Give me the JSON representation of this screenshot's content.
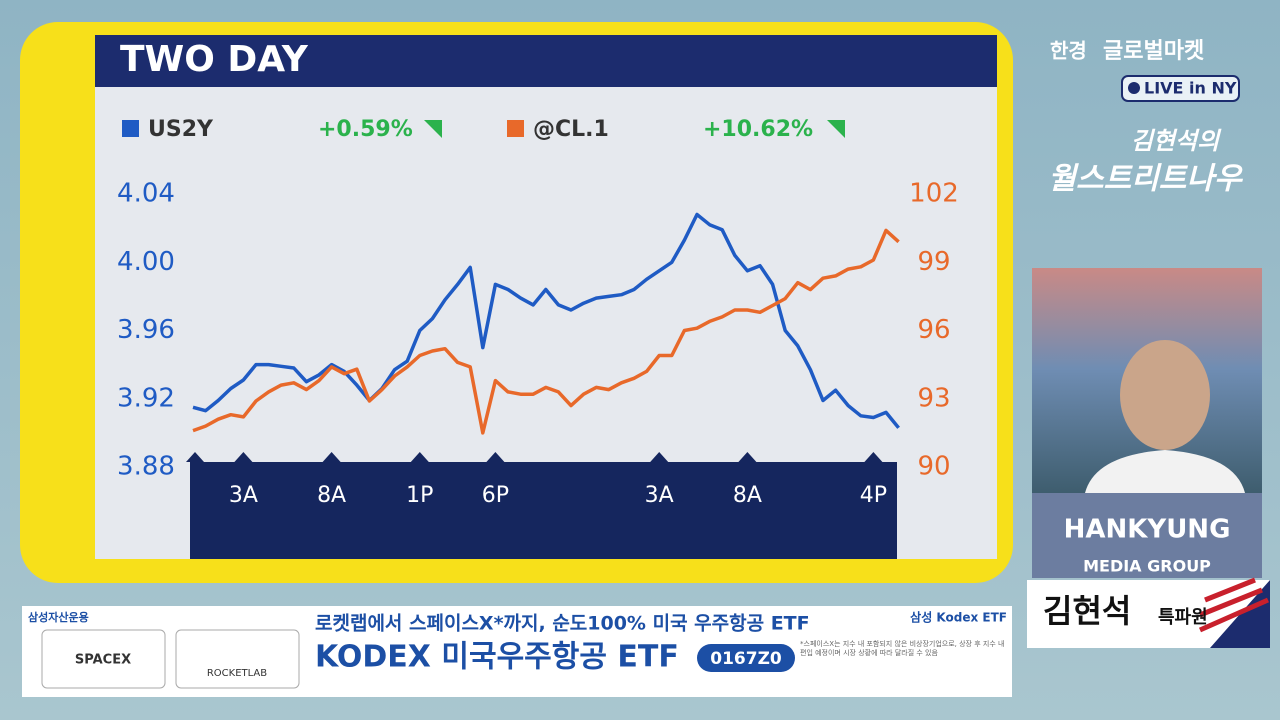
{
  "chart_data": {
    "type": "line",
    "title": "TWO DAY",
    "categories": [
      null,
      null,
      null,
      null,
      "3A",
      null,
      null,
      null,
      null,
      null,
      null,
      "8A",
      null,
      null,
      null,
      null,
      null,
      null,
      "1P",
      null,
      null,
      null,
      null,
      null,
      "6P",
      null,
      null,
      null,
      null,
      null,
      null,
      null,
      null,
      null,
      null,
      null,
      null,
      "3A",
      null,
      null,
      null,
      null,
      null,
      null,
      "8A",
      null,
      null,
      null,
      null,
      null,
      null,
      null,
      null,
      null,
      "4P",
      null,
      null
    ],
    "series": [
      {
        "name": "US2Y",
        "change": "+0.59%",
        "color": "#1f5bc4",
        "values": [
          3.915,
          3.913,
          3.919,
          3.926,
          3.931,
          3.94,
          3.94,
          3.939,
          3.938,
          3.93,
          3.934,
          3.94,
          3.936,
          3.928,
          3.919,
          3.926,
          3.937,
          3.942,
          3.96,
          3.967,
          3.978,
          3.987,
          3.997,
          3.95,
          3.987,
          3.984,
          3.979,
          3.975,
          3.984,
          3.975,
          3.972,
          3.976,
          3.979,
          3.98,
          3.981,
          3.984,
          3.99,
          3.995,
          4.0,
          4.013,
          4.028,
          4.022,
          4.019,
          4.004,
          3.995,
          3.998,
          3.987,
          3.96,
          3.951,
          3.937,
          3.919,
          3.925,
          3.916,
          3.91,
          3.909,
          3.912,
          3.903
        ]
      },
      {
        "name": "@CL.1",
        "change": "+10.62%",
        "color": "#e8692a",
        "axis": "y2",
        "values": [
          91.6,
          91.8,
          92.1,
          92.3,
          92.2,
          92.9,
          93.3,
          93.6,
          93.7,
          93.4,
          93.8,
          94.4,
          94.1,
          94.3,
          92.9,
          93.4,
          94.0,
          94.4,
          94.9,
          95.1,
          95.2,
          94.6,
          94.4,
          91.5,
          93.8,
          93.3,
          93.2,
          93.2,
          93.5,
          93.3,
          92.7,
          93.2,
          93.5,
          93.4,
          93.7,
          93.9,
          94.2,
          94.9,
          94.9,
          96.0,
          96.1,
          96.4,
          96.6,
          96.9,
          96.9,
          96.8,
          97.1,
          97.4,
          98.1,
          97.8,
          98.3,
          98.4,
          98.7,
          98.8,
          99.1,
          100.4,
          99.9
        ]
      }
    ],
    "ylim": [
      3.88,
      4.04
    ],
    "yticks": [
      3.88,
      3.92,
      3.96,
      {
        "value": 4,
        "label": "4.00"
      },
      4.04
    ],
    "y2lim": [
      90,
      102
    ],
    "y2ticks": [
      90,
      93,
      96,
      99,
      102
    ],
    "grid": false
  },
  "broadcast": {
    "brand": "한경",
    "program": "글로벌마켓",
    "live": "LIVE in NY",
    "show_line1": "김현석의",
    "show_line2": "월스트리트나우",
    "company": "HANKYUNG",
    "company_sub": "MEDIA GROUP",
    "reporter": "김현석",
    "reporter_title": "특파원"
  },
  "ad": {
    "sponsor": "삼성자산운용",
    "logo1": "SPACEX",
    "logo2": "ROCKETLAB",
    "headline": "로켓랩에서 스페이스X*까지, 순도100% 미국 우주항공 ETF",
    "product": "KODEX 미국우주항공 ETF",
    "code": "0167Z0",
    "brand": "삼성 Kodex ETF",
    "note": "*스페이스X는 지수 내 포함되지 않은 비상장기업으로, 상장 후 지수 내 편입 예정이며 시장 상황에 따라 달라질 수 있음"
  }
}
